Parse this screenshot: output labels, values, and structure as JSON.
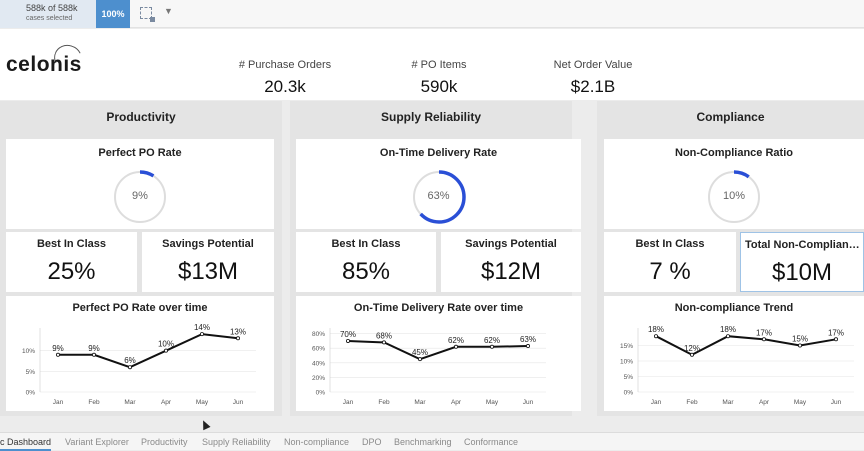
{
  "selection": {
    "cases": "588k of 588k",
    "cases_sub": "cases selected",
    "percent": "100%"
  },
  "logo": "celonis",
  "kpis": [
    {
      "label": "# Purchase Orders",
      "value": "20.3k"
    },
    {
      "label": "# PO Items",
      "value": "590k"
    },
    {
      "label": "Net Order Value",
      "value": "$2.1B"
    }
  ],
  "colors": {
    "accent": "#2a4fd6",
    "gauge_track": "#dddddd",
    "line": "#111111",
    "tab_active": "#4d8fce"
  },
  "sections": [
    {
      "title": "Productivity",
      "gauge_title": "Perfect PO Rate",
      "gauge_value": "9%",
      "gauge_fraction": 0.09,
      "stat1_label": "Best In Class",
      "stat1_value": "25%",
      "stat2_label": "Savings Potential",
      "stat2_value": "$13M",
      "chart_title": "Perfect PO Rate over time"
    },
    {
      "title": "Supply Reliability",
      "gauge_title": "On-Time Delivery Rate",
      "gauge_value": "63%",
      "gauge_fraction": 0.63,
      "stat1_label": "Best In Class",
      "stat1_value": "85%",
      "stat2_label": "Savings Potential",
      "stat2_value": "$12M",
      "chart_title": "On-Time Delivery Rate over time"
    },
    {
      "title": "Compliance",
      "gauge_title": "Non-Compliance Ratio",
      "gauge_value": "10%",
      "gauge_fraction": 0.1,
      "stat1_label": "Best In Class",
      "stat1_value": "7 %",
      "stat2_label": "Total Non-Complian…",
      "stat2_value": "$10M",
      "chart_title": "Non-compliance Trend"
    }
  ],
  "chart_data": [
    {
      "type": "line",
      "title": "Perfect PO Rate over time",
      "categories": [
        "Jan",
        "Feb",
        "Mar",
        "Apr",
        "May",
        "Jun"
      ],
      "values": [
        9,
        9,
        6,
        10,
        14,
        13
      ],
      "labels": [
        "9%",
        "9%",
        "6%",
        "10%",
        "14%",
        "13%"
      ],
      "yticks": [
        "0%",
        "5%",
        "10%"
      ],
      "ylim": [
        0,
        15
      ]
    },
    {
      "type": "line",
      "title": "On-Time Delivery Rate over time",
      "categories": [
        "Jan",
        "Feb",
        "Mar",
        "Apr",
        "May",
        "Jun"
      ],
      "values": [
        70,
        68,
        45,
        62,
        62,
        63
      ],
      "labels": [
        "70%",
        "68%",
        "45%",
        "62%",
        "62%",
        "63%"
      ],
      "yticks": [
        "0%",
        "20%",
        "40%",
        "60%",
        "80%"
      ],
      "ylim": [
        0,
        85
      ]
    },
    {
      "type": "line",
      "title": "Non-compliance Trend",
      "categories": [
        "Jan",
        "Feb",
        "Mar",
        "Apr",
        "May",
        "Jun"
      ],
      "values": [
        18,
        12,
        18,
        17,
        15,
        17
      ],
      "labels": [
        "18%",
        "12%",
        "18%",
        "17%",
        "15%",
        "17%"
      ],
      "yticks": [
        "0%",
        "5%",
        "10%",
        "15%"
      ],
      "ylim": [
        0,
        20
      ]
    }
  ],
  "footer_tabs": [
    "c Dashboard",
    "Variant Explorer",
    "Productivity",
    "Supply Reliability",
    "Non-compliance",
    "DPO",
    "Benchmarking",
    "Conformance"
  ]
}
